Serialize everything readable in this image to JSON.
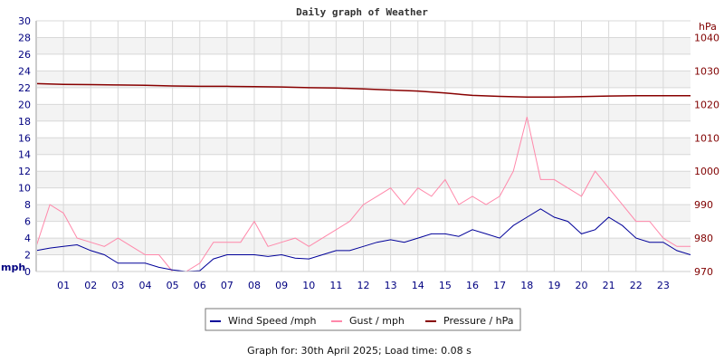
{
  "chart_data": {
    "type": "line",
    "title": "Daily graph of Weather",
    "left_axis": {
      "unit_label": "mph",
      "ylim": [
        0,
        30
      ],
      "ticks": [
        0,
        2,
        4,
        6,
        8,
        10,
        12,
        14,
        16,
        18,
        20,
        22,
        24,
        26,
        28,
        30
      ],
      "color": "#000080"
    },
    "right_axis": {
      "unit_label": "hPa",
      "ylim": [
        970,
        1045
      ],
      "ticks": [
        970,
        980,
        990,
        1000,
        1010,
        1020,
        1030,
        1040
      ],
      "color": "#800000"
    },
    "x_axis": {
      "xlim": [
        0,
        24
      ],
      "tick_labels": [
        "01",
        "02",
        "03",
        "04",
        "05",
        "06",
        "07",
        "08",
        "09",
        "10",
        "11",
        "12",
        "13",
        "14",
        "15",
        "16",
        "17",
        "18",
        "19",
        "20",
        "21",
        "22",
        "23"
      ]
    },
    "grid": true,
    "legend_position": "bottom",
    "series": [
      {
        "name": "Wind Speed /mph",
        "axis": "left",
        "color": "#000099",
        "x": [
          0,
          0.5,
          1,
          1.5,
          2,
          2.5,
          3,
          3.5,
          4,
          4.5,
          5,
          5.5,
          6,
          6.5,
          7,
          7.5,
          8,
          8.5,
          9,
          9.5,
          10,
          10.5,
          11,
          11.5,
          12,
          12.5,
          13,
          13.5,
          14,
          14.5,
          15,
          15.5,
          16,
          16.5,
          17,
          17.5,
          18,
          18.5,
          19,
          19.5,
          20,
          20.5,
          21,
          21.5,
          22,
          22.5,
          23,
          23.5,
          24
        ],
        "values": [
          2.5,
          2.8,
          3,
          3.2,
          2.5,
          2,
          1,
          1,
          1,
          0.5,
          0.2,
          0,
          0.1,
          1.5,
          2,
          2,
          2,
          1.8,
          2,
          1.6,
          1.5,
          2,
          2.5,
          2.5,
          3,
          3.5,
          3.8,
          3.5,
          4,
          4.5,
          4.5,
          4.2,
          5,
          4.5,
          4,
          5.5,
          6.5,
          7.5,
          6.5,
          6,
          4.5,
          5,
          6.5,
          5.5,
          4,
          3.5,
          3.5,
          2.5,
          2
        ]
      },
      {
        "name": "Gust / mph",
        "axis": "left",
        "color": "#ff88aa",
        "x": [
          0,
          0.5,
          1,
          1.5,
          2,
          2.5,
          3,
          3.5,
          4,
          4.5,
          5,
          5.5,
          6,
          6.5,
          7,
          7.5,
          8,
          8.5,
          9,
          9.5,
          10,
          10.5,
          11,
          11.5,
          12,
          12.5,
          13,
          13.5,
          14,
          14.5,
          15,
          15.5,
          16,
          16.5,
          17,
          17.5,
          18,
          18.5,
          19,
          19.5,
          20,
          20.5,
          21,
          21.5,
          22,
          22.5,
          23,
          23.5,
          24
        ],
        "values": [
          3,
          8,
          7,
          4,
          3.5,
          3,
          4,
          3,
          2,
          2,
          0,
          0,
          1,
          3.5,
          3.5,
          3.5,
          6,
          3,
          3.5,
          4,
          3,
          4,
          5,
          6,
          8,
          9,
          10,
          8,
          10,
          9,
          11,
          8,
          9,
          8,
          9,
          12,
          18.5,
          11,
          11,
          10,
          9,
          12,
          10,
          8,
          6,
          6,
          4,
          3,
          3
        ]
      },
      {
        "name": "Pressure / hPa",
        "axis": "right",
        "color": "#880000",
        "x": [
          0,
          1,
          2,
          3,
          4,
          5,
          6,
          7,
          8,
          9,
          10,
          11,
          12,
          13,
          14,
          15,
          16,
          17,
          18,
          19,
          20,
          21,
          22,
          23,
          24
        ],
        "values": [
          1026.2,
          1026.0,
          1025.9,
          1025.8,
          1025.7,
          1025.5,
          1025.4,
          1025.4,
          1025.3,
          1025.2,
          1025.0,
          1024.9,
          1024.6,
          1024.3,
          1024.0,
          1023.4,
          1022.7,
          1022.4,
          1022.2,
          1022.2,
          1022.3,
          1022.5,
          1022.6,
          1022.6,
          1022.6
        ]
      }
    ]
  },
  "footer": "Graph for: 30th April 2025; Load time: 0.08 s"
}
